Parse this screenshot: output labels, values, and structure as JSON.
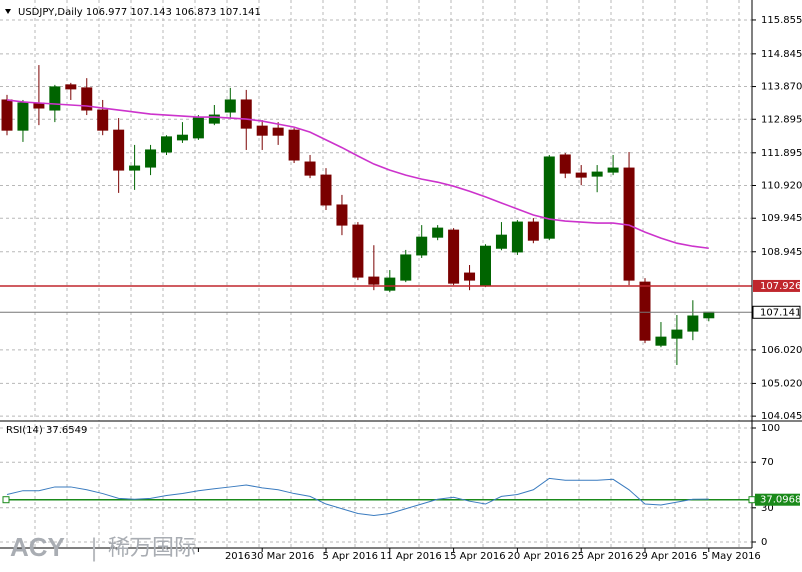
{
  "chart_data": [
    {
      "type": "candlestick",
      "symbol": "USDJPY,Daily",
      "categories": [
        null,
        null,
        null,
        null,
        null,
        null,
        null,
        null,
        null,
        null,
        null,
        null,
        "2016",
        null,
        null,
        null,
        "30 Mar 2016",
        null,
        null,
        null,
        "5 Apr 2016",
        null,
        null,
        null,
        "11 Apr 2016",
        null,
        null,
        null,
        "15 Apr 2016",
        null,
        null,
        null,
        "20 Apr 2016",
        null,
        null,
        null,
        "25 Apr 2016",
        null,
        null,
        null,
        "29 Apr 2016",
        null,
        null,
        null,
        "5 May 2016"
      ],
      "open": [
        113.47,
        112.57,
        113.38,
        113.17,
        113.92,
        113.83,
        113.17,
        112.57,
        111.38,
        111.47,
        111.92,
        112.28,
        112.34,
        112.78,
        113.11,
        113.47,
        112.69,
        112.63,
        112.57,
        111.62,
        111.23,
        110.34,
        109.74,
        108.19,
        107.8,
        108.1,
        108.85,
        109.38,
        109.59,
        108.31,
        107.95,
        109.05,
        108.94,
        109.83,
        109.35,
        111.83,
        111.29,
        111.2,
        111.32,
        111.44,
        108.04,
        106.16,
        106.37,
        106.58,
        106.977
      ],
      "high": [
        113.62,
        113.47,
        114.51,
        113.92,
        113.98,
        114.12,
        113.47,
        112.93,
        112.13,
        112.13,
        112.42,
        112.81,
        113.02,
        113.32,
        113.83,
        113.77,
        112.87,
        112.81,
        112.63,
        111.83,
        111.44,
        110.64,
        109.83,
        109.14,
        108.4,
        109,
        109.74,
        109.74,
        109.65,
        108.55,
        109.17,
        109.83,
        109.89,
        109.95,
        111.83,
        111.89,
        111.53,
        111.53,
        111.83,
        111.92,
        108.16,
        106.85,
        107.06,
        107.5,
        107.143
      ],
      "low": [
        112.42,
        112.22,
        112.72,
        112.81,
        113.47,
        113.02,
        112.42,
        110.7,
        110.79,
        111.23,
        111.83,
        112.19,
        112.28,
        112.72,
        112.93,
        111.98,
        111.98,
        112.13,
        111.59,
        111.14,
        110.19,
        109.44,
        108.1,
        107.8,
        107.74,
        108.04,
        108.76,
        109.29,
        107.95,
        107.8,
        107.89,
        108.99,
        108.85,
        109.2,
        109.29,
        111.14,
        110.93,
        110.72,
        111.23,
        107.95,
        106.22,
        106.1,
        105.57,
        106.31,
        106.873
      ],
      "close": [
        112.57,
        113.38,
        113.23,
        113.86,
        113.8,
        113.17,
        112.57,
        111.38,
        111.5,
        111.98,
        112.37,
        112.42,
        112.93,
        113.02,
        113.47,
        112.63,
        112.42,
        112.42,
        111.68,
        111.23,
        110.34,
        109.74,
        108.19,
        107.98,
        108.16,
        108.85,
        109.38,
        109.65,
        108.01,
        108.1,
        109.11,
        109.44,
        109.83,
        109.29,
        111.77,
        111.29,
        111.17,
        111.32,
        111.44,
        108.1,
        106.31,
        106.4,
        106.61,
        107.03,
        107.141
      ],
      "up_color": "#006400",
      "down_color": "#7a0000",
      "moving_average": {
        "color": "#cc33cc",
        "values": [
          113.47,
          113.41,
          113.38,
          113.35,
          113.32,
          113.29,
          113.23,
          113.17,
          113.11,
          113.05,
          113.02,
          112.99,
          112.96,
          112.96,
          112.93,
          112.9,
          112.84,
          112.75,
          112.66,
          112.51,
          112.28,
          112.05,
          111.8,
          111.56,
          111.38,
          111.23,
          111.11,
          111.02,
          110.9,
          110.75,
          110.58,
          110.4,
          110.22,
          110.04,
          109.92,
          109.86,
          109.83,
          109.8,
          109.8,
          109.74,
          109.53,
          109.35,
          109.2,
          109.11,
          109.05
        ]
      },
      "ylim": [
        103.93,
        116.45
      ],
      "yticks": [
        115.855,
        114.845,
        {
          "value": 113.87,
          "label": "113.870"
        },
        112.895,
        111.895,
        {
          "value": 110.92,
          "label": "110.920"
        },
        109.945,
        108.945,
        {
          "value": 106.02,
          "label": "106.020"
        },
        {
          "value": 105.02,
          "label": "105.020"
        },
        104.045
      ],
      "level": {
        "value": 107.926,
        "color": "#c0272d"
      },
      "grid": true
    },
    {
      "type": "line",
      "name": "RSI(14)",
      "color": "#3a7bbf",
      "values": [
        41.7,
        45,
        45,
        48.3,
        48.3,
        45.8,
        42.5,
        38.3,
        37.5,
        38.3,
        40.8,
        42.5,
        45,
        46.7,
        48.3,
        50,
        47.5,
        45.8,
        42.5,
        40,
        33.3,
        29.2,
        25,
        23.3,
        25,
        29.2,
        33.3,
        37.5,
        39.2,
        35.8,
        33.3,
        40,
        41.7,
        45.8,
        55.8,
        54.2,
        54.2,
        54.2,
        55,
        45.8,
        33.3,
        32.5,
        35,
        37.5,
        37.6549
      ],
      "ylim": [
        0,
        100
      ],
      "yticks": [
        100,
        70,
        30,
        0
      ],
      "level": {
        "value": 37.0968,
        "color": "#1a8a1a"
      },
      "grid": true
    }
  ],
  "watermark": {
    "brand": "ACY",
    "separator": "|",
    "name": "稀万国际"
  }
}
